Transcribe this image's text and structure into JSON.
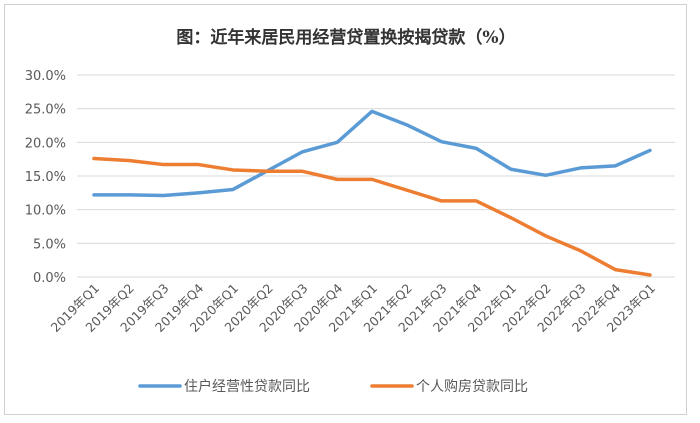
{
  "chart_data": {
    "type": "line",
    "title": "图：近年来居民用经营贷置换按揭贷款（%）",
    "xlabel": "",
    "ylabel": "",
    "ylim": [
      0,
      30
    ],
    "yticks": [
      "0.0%",
      "5.0%",
      "10.0%",
      "15.0%",
      "20.0%",
      "25.0%",
      "30.0%"
    ],
    "grid": true,
    "legend_position": "bottom",
    "categories": [
      "2019年Q1",
      "2019年Q2",
      "2019年Q3",
      "2019年Q4",
      "2020年Q1",
      "2020年Q2",
      "2020年Q3",
      "2020年Q4",
      "2021年Q1",
      "2021年Q2",
      "2021年Q3",
      "2021年Q4",
      "2022年Q1",
      "2022年Q2",
      "2022年Q3",
      "2022年Q4",
      "2023年Q1"
    ],
    "series": [
      {
        "name": "住户经营性贷款同比",
        "color": "#5b9bd5",
        "values": [
          12.2,
          12.2,
          12.1,
          12.5,
          13.0,
          15.8,
          18.6,
          20.0,
          24.6,
          22.6,
          20.1,
          19.1,
          16.0,
          15.1,
          16.2,
          16.5,
          18.8
        ]
      },
      {
        "name": "个人购房贷款同比",
        "color": "#ed7d31",
        "values": [
          17.6,
          17.3,
          16.7,
          16.7,
          15.9,
          15.7,
          15.7,
          14.5,
          14.5,
          12.9,
          11.3,
          11.3,
          8.8,
          6.1,
          3.9,
          1.1,
          0.3
        ]
      }
    ]
  }
}
